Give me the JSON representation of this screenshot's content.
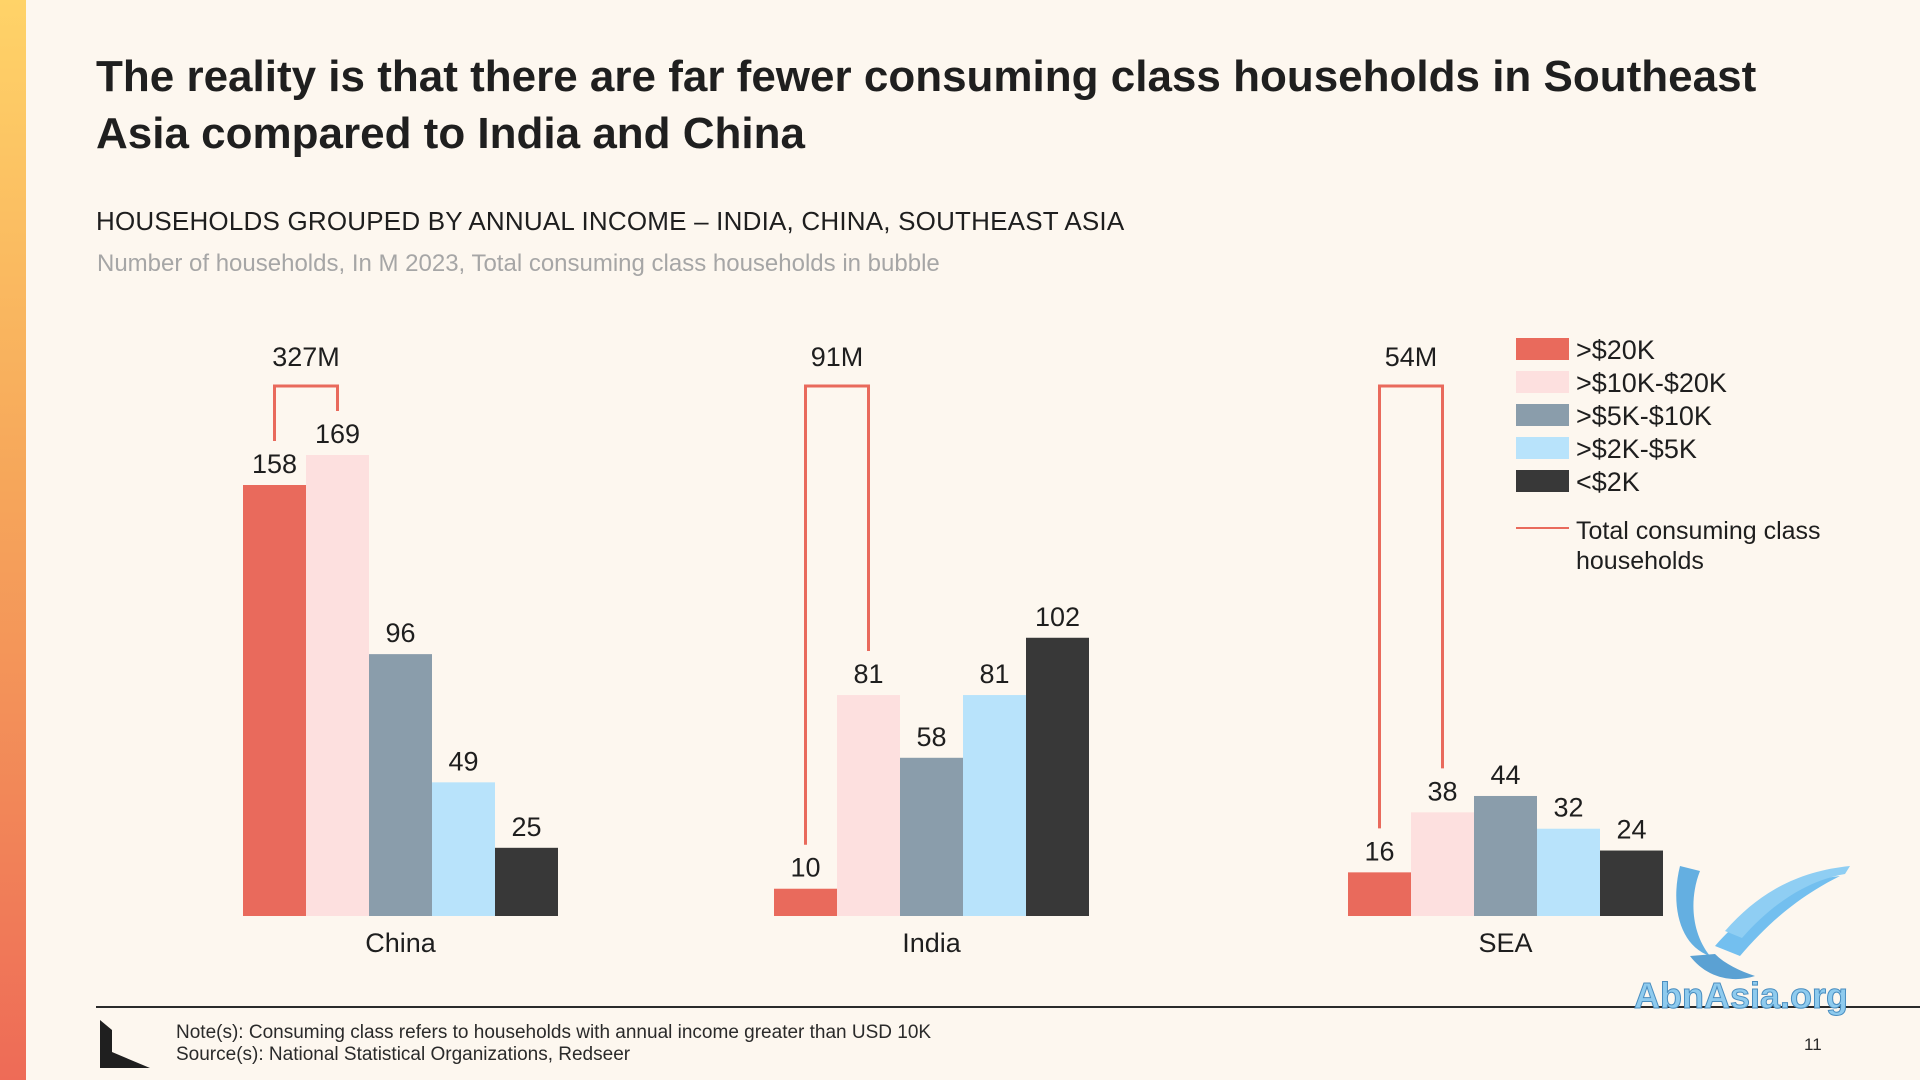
{
  "slide": {
    "title": "The reality is that there are far fewer consuming class households in Southeast Asia compared to India and China",
    "subtitle": "HOUSEHOLDS GROUPED BY ANNUAL INCOME – INDIA, CHINA, SOUTHEAST ASIA",
    "units": "Number of households, In M 2023, Total consuming class households in bubble",
    "note": "Note(s): Consuming class refers to households with annual income greater than USD 10K",
    "source": "Source(s): National Statistical Organizations, Redseer",
    "page_number": "11",
    "watermark_text": "AbnAsia.org"
  },
  "chart_data": {
    "type": "bar",
    "title": "HOUSEHOLDS GROUPED BY ANNUAL INCOME – INDIA, CHINA, SOUTHEAST ASIA",
    "ylabel": "Number of households, In M 2023",
    "categories": [
      "China",
      "India",
      "SEA"
    ],
    "ylim": [
      0,
      169
    ],
    "grid": false,
    "legend_position": "top-right",
    "series": [
      {
        "name": ">$20K",
        "color": "#e96a5c",
        "values": [
          158,
          10,
          16
        ]
      },
      {
        "name": ">$10K-$20K",
        "color": "#fde0df",
        "values": [
          169,
          81,
          38
        ]
      },
      {
        "name": ">$5K-$10K",
        "color": "#8a9dab",
        "values": [
          96,
          58,
          44
        ]
      },
      {
        "name": ">$2K-$5K",
        "color": "#b8e3fb",
        "values": [
          49,
          81,
          32
        ]
      },
      {
        "name": "<$2K",
        "color": "#383838",
        "values": [
          25,
          102,
          24
        ]
      }
    ],
    "consuming_class_totals": [
      "327M",
      "91M",
      "54M"
    ],
    "total_line_label": "Total consuming class households",
    "total_line_color": "#e96a5c"
  }
}
